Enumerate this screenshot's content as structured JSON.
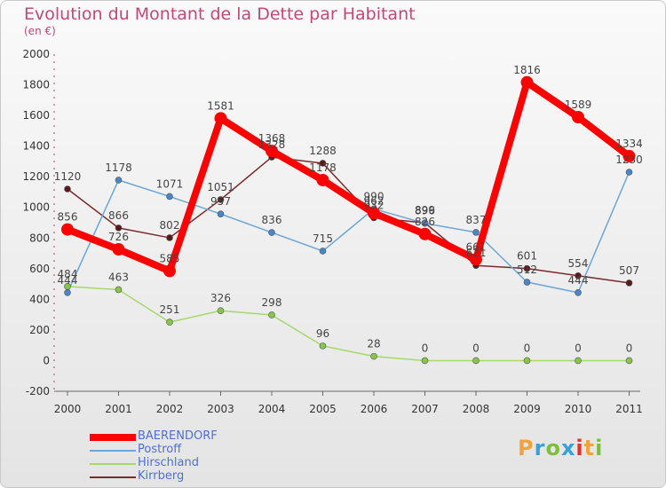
{
  "title": "Evolution du Montant de la Dette par Habitant",
  "subtitle": "(en €)",
  "logo": {
    "text": "Proxiti",
    "colors": [
      "#f2a33a",
      "#3aa0d8",
      "#7cbf3a",
      "#3aa0d8",
      "#e0312c",
      "#f2a33a",
      "#7cbf3a"
    ]
  },
  "chart_data": {
    "type": "line",
    "categories": [
      "2000",
      "2001",
      "2002",
      "2003",
      "2004",
      "2005",
      "2006",
      "2007",
      "2008",
      "2009",
      "2010",
      "2011"
    ],
    "ylim": [
      -200,
      2000
    ],
    "yticks": [
      "-200",
      "0",
      "200",
      "400",
      "600",
      "800",
      "1000",
      "1200",
      "1400",
      "1600",
      "1800",
      "2000"
    ],
    "grid": false,
    "legend_placement": "bottom-left",
    "series": [
      {
        "name": "BAERENDORF",
        "color": "#ff0000",
        "marker": "#ff0000",
        "values": [
          856,
          726,
          585,
          1581,
          1368,
          1178,
          962,
          826,
          661,
          1816,
          1589,
          1334
        ]
      },
      {
        "name": "Postroff",
        "color": "#6aa6d6",
        "marker": "#4a86c6",
        "values": [
          444,
          1178,
          1071,
          957,
          836,
          715,
          990,
          896,
          837,
          512,
          444,
          1230
        ]
      },
      {
        "name": "Hirschland",
        "color": "#a6d86a",
        "marker": "#86c64a",
        "values": [
          484,
          463,
          251,
          326,
          298,
          96,
          28,
          0,
          0,
          0,
          0,
          0
        ]
      },
      {
        "name": "Kirrberg",
        "color": "#7a2a2a",
        "marker": "#5a1a1a",
        "values": [
          1120,
          866,
          802,
          1051,
          1328,
          1288,
          932,
          899,
          621,
          601,
          554,
          507
        ]
      }
    ]
  }
}
